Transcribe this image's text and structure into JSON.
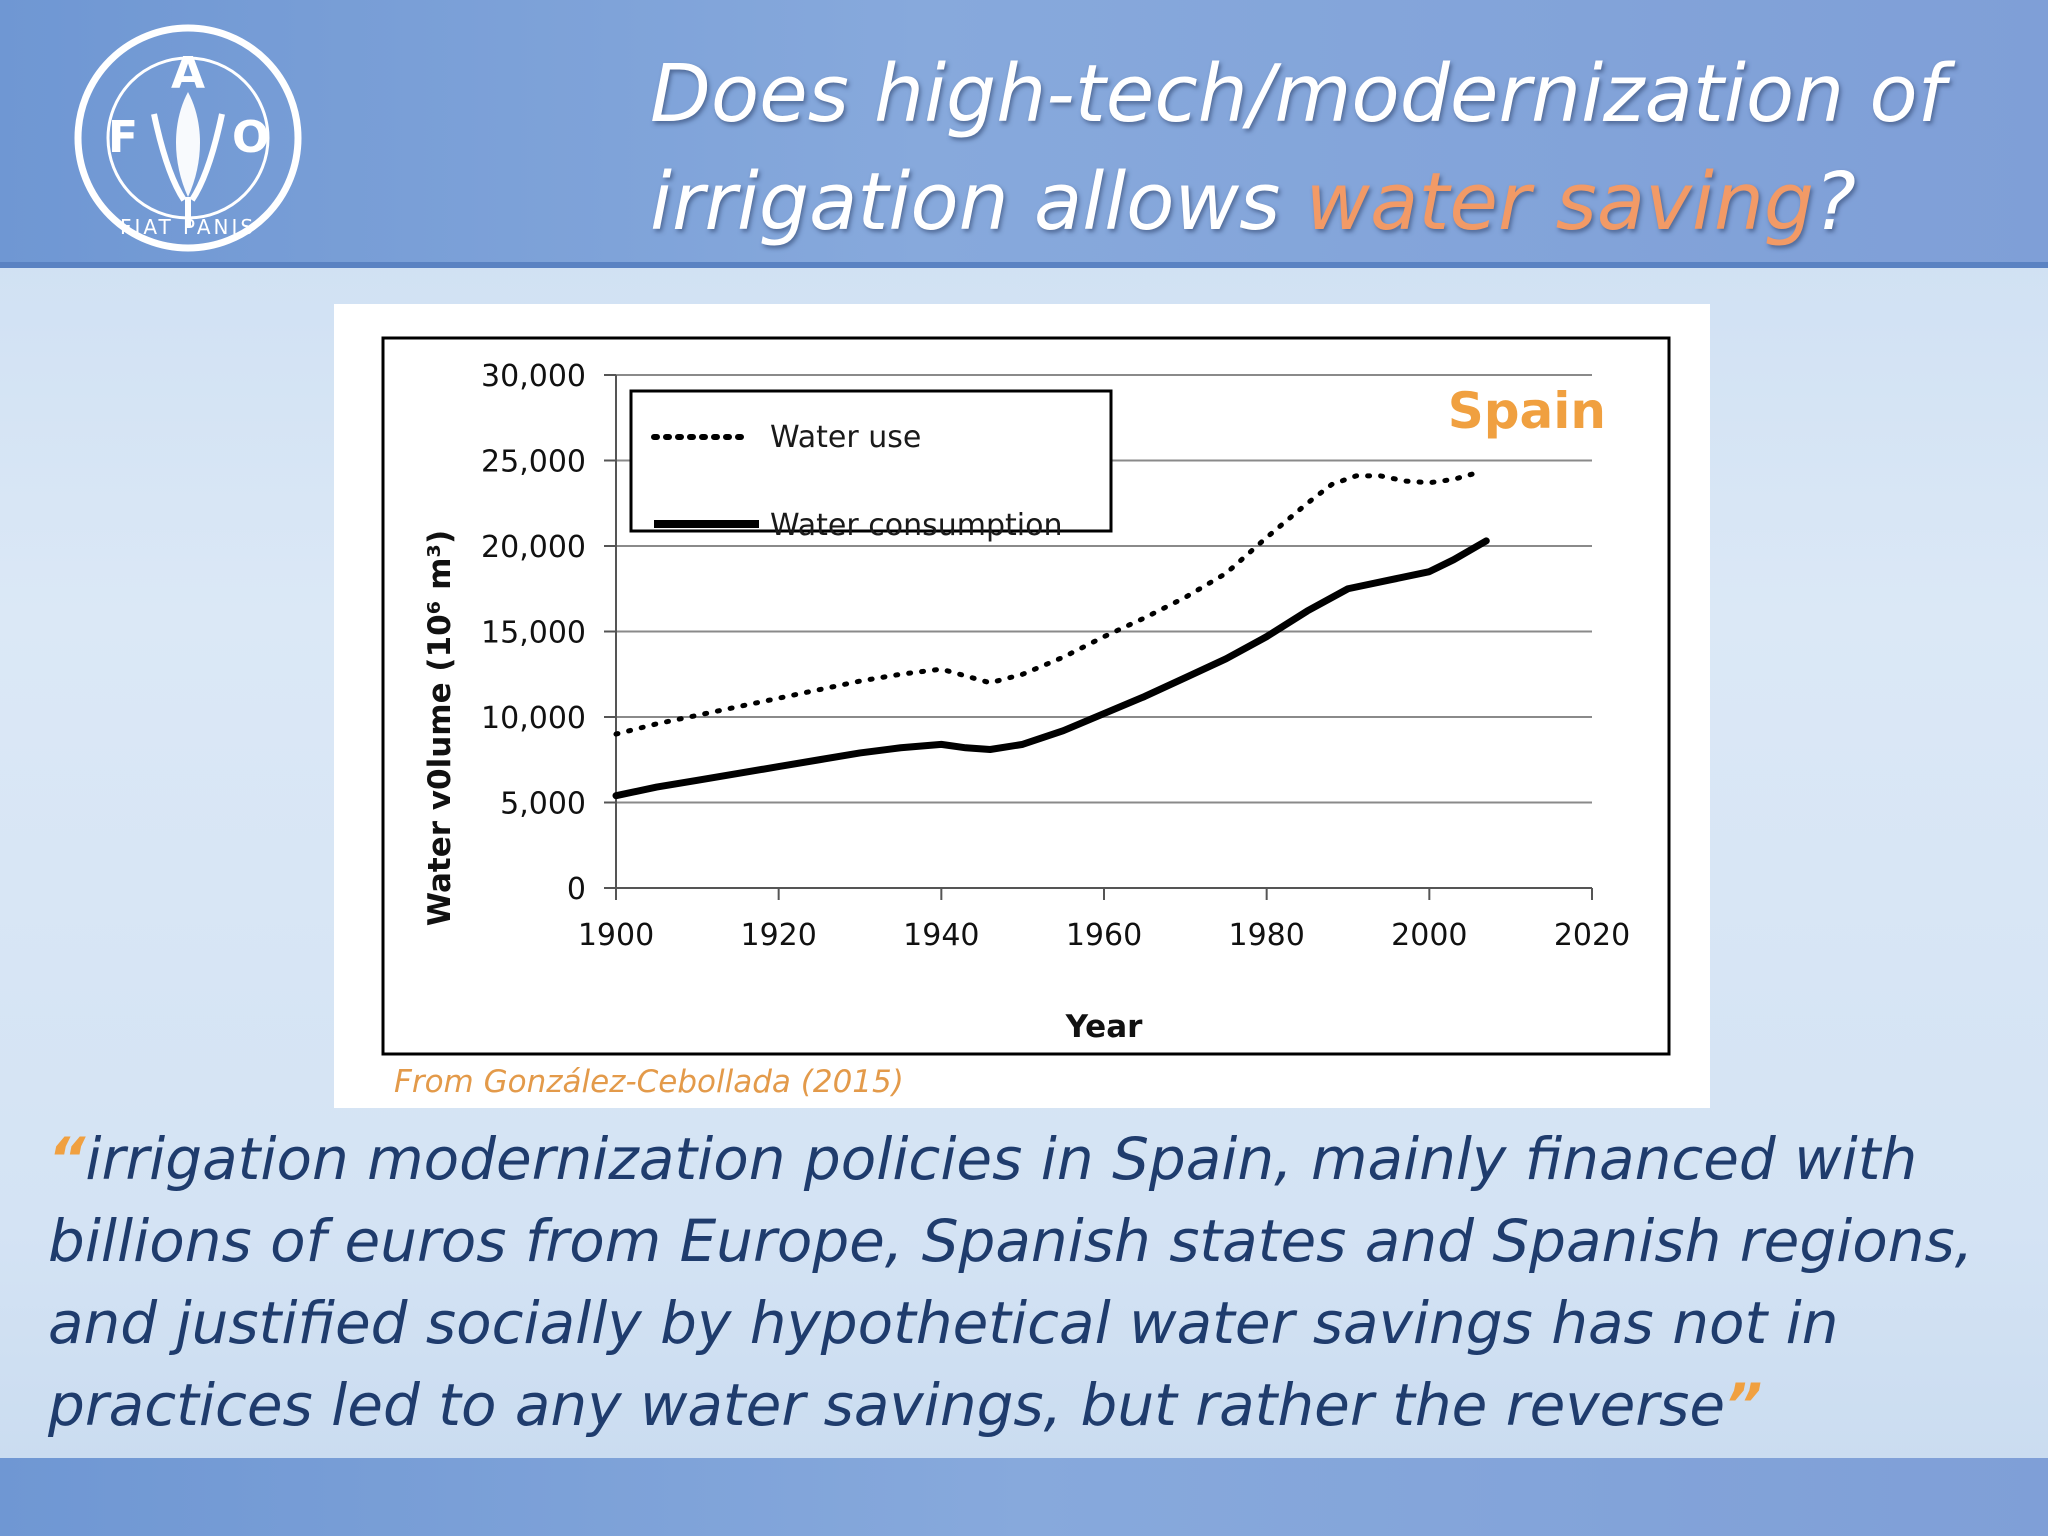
{
  "slide": {
    "title_part1": "Does high-tech/modernization of irrigation allows ",
    "title_highlight": "water saving",
    "title_end": "?",
    "logo_letters": [
      "F",
      "A",
      "O"
    ],
    "logo_motto": "FIAT PANIS",
    "source": "From González-Cebollada (2015)",
    "quote_open": "“",
    "quote_text": "irrigation modernization policies in Spain, mainly financed with billions of euros from Europe, Spanish states and Spanish regions, and justified socially by hypothetical water savings has not in practices led to any water savings, but rather the reverse",
    "quote_close": "”",
    "colors": {
      "highlight": "#f29a66",
      "quote_text": "#1f3c6d",
      "quote_marks": "#f0a040",
      "chart_annotation": "#f0a040"
    }
  },
  "chart_data": {
    "type": "line",
    "annotation": "Spain",
    "xlabel": "Year",
    "ylabel": "Water v0lume (10⁶ m³)",
    "xlim": [
      1900,
      2020
    ],
    "ylim": [
      0,
      30000
    ],
    "x_ticks": [
      1900,
      1920,
      1940,
      1960,
      1980,
      2000,
      2020
    ],
    "y_ticks": [
      0,
      5000,
      10000,
      15000,
      20000,
      25000,
      30000
    ],
    "x_tick_labels": [
      "1900",
      "1920",
      "1940",
      "1960",
      "1980",
      "2000",
      "2020"
    ],
    "y_tick_labels": [
      "0",
      "5,000",
      "10,000",
      "15,000",
      "20,000",
      "25,000",
      "30,000"
    ],
    "grid": "horizontal",
    "legend_position": "top-left",
    "series": [
      {
        "name": "Water use",
        "style": "dotted",
        "x": [
          1900,
          1905,
          1910,
          1915,
          1920,
          1925,
          1930,
          1935,
          1940,
          1943,
          1946,
          1950,
          1955,
          1960,
          1965,
          1970,
          1975,
          1980,
          1985,
          1988,
          1991,
          1994,
          1997,
          2000,
          2003,
          2006
        ],
        "y": [
          9000,
          9600,
          10100,
          10600,
          11100,
          11600,
          12100,
          12500,
          12800,
          12400,
          12000,
          12500,
          13500,
          14700,
          15800,
          17000,
          18400,
          20500,
          22500,
          23600,
          24100,
          24100,
          23800,
          23700,
          23900,
          24300
        ]
      },
      {
        "name": "Water consumption",
        "style": "solid",
        "x": [
          1900,
          1905,
          1910,
          1915,
          1920,
          1925,
          1930,
          1935,
          1940,
          1943,
          1946,
          1950,
          1955,
          1960,
          1965,
          1970,
          1975,
          1980,
          1985,
          1990,
          1995,
          2000,
          2003,
          2007
        ],
        "y": [
          5400,
          5900,
          6300,
          6700,
          7100,
          7500,
          7900,
          8200,
          8400,
          8200,
          8100,
          8400,
          9200,
          10200,
          11200,
          12300,
          13400,
          14700,
          16200,
          17500,
          18000,
          18500,
          19200,
          20300
        ]
      }
    ]
  }
}
